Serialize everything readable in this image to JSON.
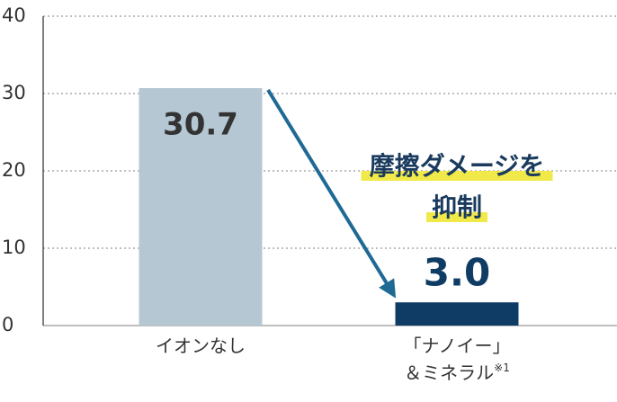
{
  "chart_data": {
    "type": "bar",
    "categories": [
      "イオンなし",
      [
        "「ナノイー」",
        "＆ミネラル"
      ]
    ],
    "category_notes": [
      null,
      "※1"
    ],
    "values": [
      30.7,
      3.0
    ],
    "value_labels": [
      "30.7",
      "3.0"
    ],
    "colors": [
      "#b5c7d3",
      "#0e3c64"
    ],
    "ylim": [
      0,
      40
    ],
    "yticks": [
      0,
      10,
      20,
      30,
      40
    ],
    "grid": true,
    "annotation": [
      "摩擦ダメージを",
      "抑制"
    ]
  }
}
